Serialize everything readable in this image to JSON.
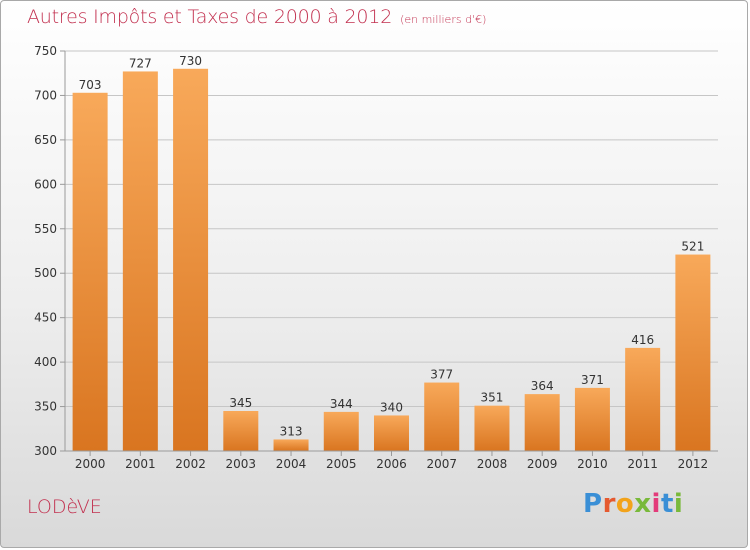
{
  "title": "Autres Impôts et Taxes de 2000 à 2012",
  "unit": "(en milliers d'€)",
  "commune": "LODèVE",
  "logo": {
    "text": "Proxiti",
    "letter_colors": [
      "#3a8fd6",
      "#e5592f",
      "#f2a31b",
      "#79b93a",
      "#e33b7a",
      "#3a8fd6",
      "#79b93a"
    ]
  },
  "colors": {
    "title": "#c2304f",
    "bar_light": "#f8a95a",
    "bar_dark": "#d97520",
    "grid": "#c6c6c6",
    "axis": "#9a9a9a"
  },
  "chart_data": {
    "type": "bar",
    "categories": [
      "2000",
      "2001",
      "2002",
      "2003",
      "2004",
      "2005",
      "2006",
      "2007",
      "2008",
      "2009",
      "2010",
      "2011",
      "2012"
    ],
    "values": [
      703,
      727,
      730,
      345,
      313,
      344,
      340,
      377,
      351,
      364,
      371,
      416,
      521
    ],
    "data_labels": [
      "703",
      "727",
      "730",
      "345",
      "313",
      "344",
      "340",
      "377",
      "351",
      "364",
      "371",
      "416",
      "521"
    ],
    "ylim": [
      300,
      750
    ],
    "yticks": [
      300,
      350,
      400,
      450,
      500,
      550,
      600,
      650,
      700,
      750
    ],
    "grid": true,
    "title": "Autres Impôts et Taxes de 2000 à 2012",
    "xlabel": "",
    "ylabel": ""
  }
}
